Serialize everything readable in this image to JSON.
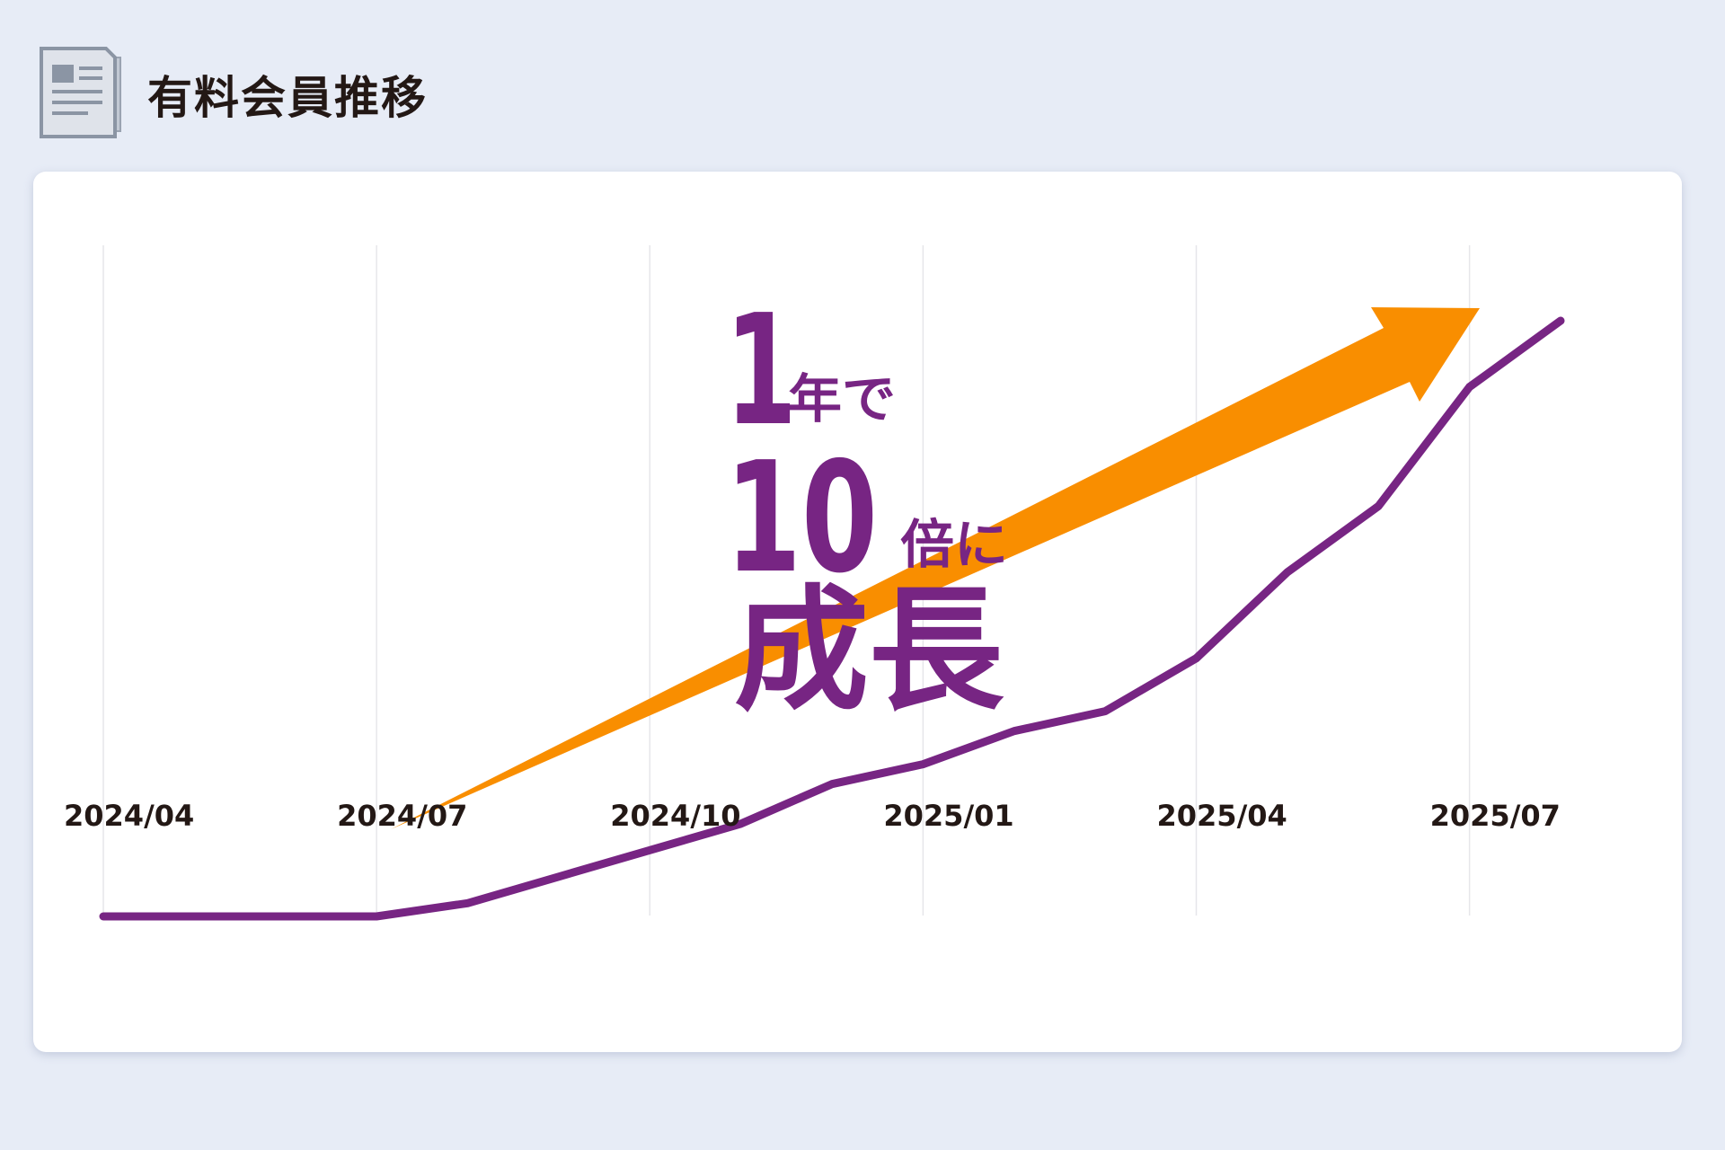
{
  "header": {
    "title": "有料会員推移",
    "icon": "document-stack-icon"
  },
  "colors": {
    "background": "#e7ecf6",
    "card": "#ffffff",
    "line": "#772583",
    "arrow": "#f98e00",
    "grid": "#e6e6ea",
    "text": "#231815"
  },
  "chart_data": {
    "type": "line",
    "title": "",
    "xlabel": "",
    "ylabel": "",
    "y_axis_visible": false,
    "grid": "vertical",
    "x_tick_labels": [
      "2024/04",
      "2024/07",
      "2024/10",
      "2025/01",
      "2025/04",
      "2025/07"
    ],
    "x": [
      "2024/04",
      "2024/05",
      "2024/06",
      "2024/07",
      "2024/08",
      "2024/09",
      "2024/10",
      "2024/11",
      "2024/12",
      "2025/01",
      "2025/02",
      "2025/03",
      "2025/04",
      "2025/05",
      "2025/06",
      "2025/07",
      "2025/08"
    ],
    "series": [
      {
        "name": "",
        "values": [
          1.0,
          1.0,
          1.0,
          1.0,
          1.2,
          1.6,
          2.0,
          2.4,
          3.0,
          3.3,
          3.8,
          4.1,
          4.9,
          6.2,
          7.2,
          9.0,
          10.0
        ]
      }
    ],
    "ylim": [
      0,
      11
    ],
    "annotation": {
      "line1_number": "1",
      "line1_suffix": "年で",
      "line2_number": "10",
      "line2_suffix": "倍に",
      "line3": "成長"
    },
    "arrow": "upward-trend-arrow"
  }
}
